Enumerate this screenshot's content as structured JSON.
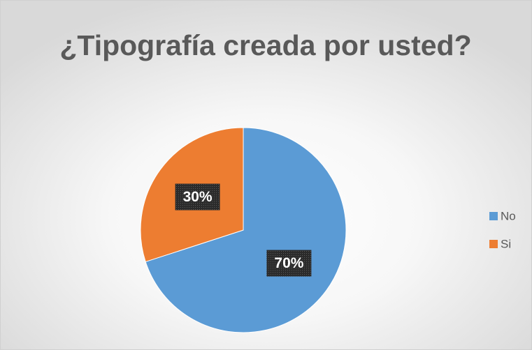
{
  "chart_data": {
    "type": "pie",
    "title": "¿Tipografía creada por usted?",
    "categories": [
      "No",
      "Si"
    ],
    "values": [
      70,
      30
    ],
    "value_labels": [
      "70%",
      "30%"
    ],
    "colors": [
      "#5b9bd5",
      "#ed7d31"
    ],
    "legend": "right"
  }
}
